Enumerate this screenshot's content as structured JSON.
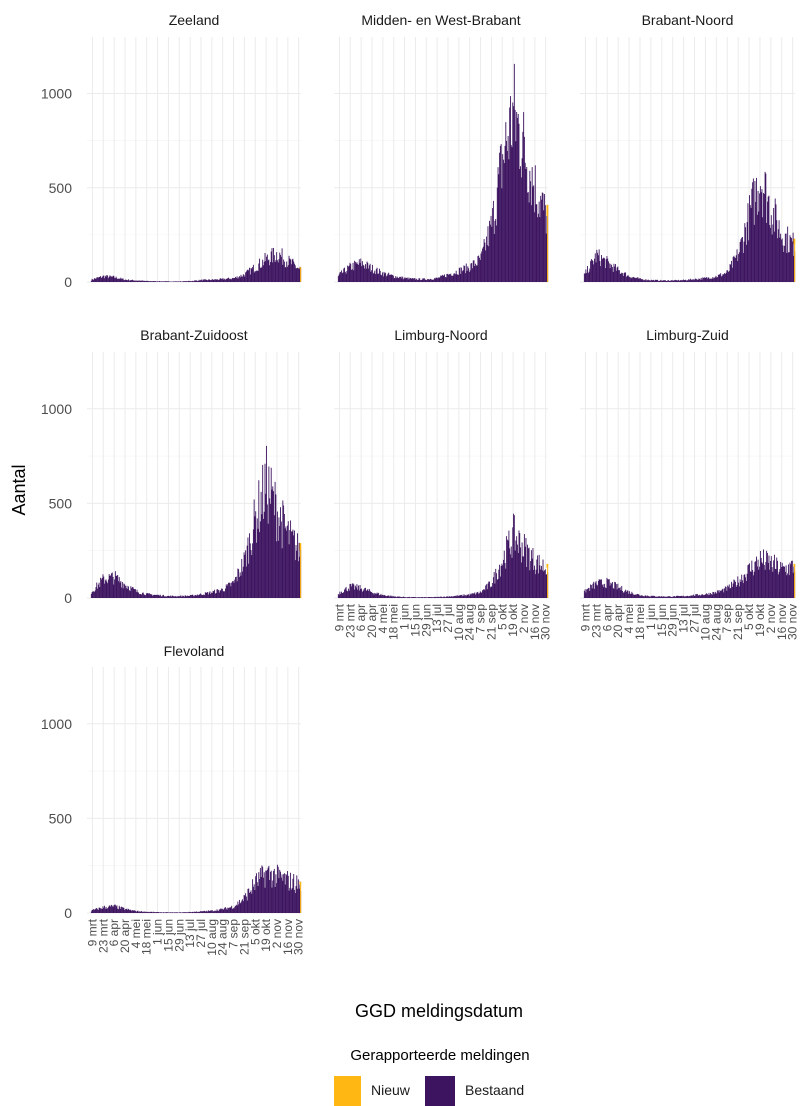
{
  "chart_data": {
    "type": "bar",
    "xlabel": "GGD meldingsdatum",
    "ylabel": "Aantal",
    "ylim": [
      0,
      1300
    ],
    "yticks": [
      0,
      500,
      1000
    ],
    "grid": true,
    "x_start": "2020-03-02",
    "x_end": "2020-12-03",
    "xticks": [
      "9 mrt",
      "23 mrt",
      "6 apr",
      "20 apr",
      "4 mei",
      "18 mei",
      "1 jun",
      "15 jun",
      "29 jun",
      "13 jul",
      "27 jul",
      "10 aug",
      "24 aug",
      "7 sep",
      "21 sep",
      "5 okt",
      "19 okt",
      "2 nov",
      "16 nov",
      "30 nov"
    ],
    "xtick_dates": [
      "2020-03-09",
      "2020-03-23",
      "2020-04-06",
      "2020-04-20",
      "2020-05-04",
      "2020-05-18",
      "2020-06-01",
      "2020-06-15",
      "2020-06-29",
      "2020-07-13",
      "2020-07-27",
      "2020-08-10",
      "2020-08-24",
      "2020-09-07",
      "2020-09-21",
      "2020-10-05",
      "2020-10-19",
      "2020-11-02",
      "2020-11-16",
      "2020-11-30"
    ],
    "legend": {
      "title": "Gerapporteerde meldingen",
      "position": "bottom",
      "entries": [
        {
          "name": "Nieuw",
          "color": "#ffb713"
        },
        {
          "name": "Bestaand",
          "color": "#3d1460"
        }
      ]
    },
    "panels": [
      {
        "name": "Zeeland",
        "series": {
          "date": [
            "2020-03-09",
            "2020-03-23",
            "2020-04-06",
            "2020-04-20",
            "2020-05-04",
            "2020-05-18",
            "2020-06-01",
            "2020-06-15",
            "2020-06-29",
            "2020-07-13",
            "2020-07-27",
            "2020-08-10",
            "2020-08-24",
            "2020-09-07",
            "2020-09-21",
            "2020-10-05",
            "2020-10-19",
            "2020-11-02",
            "2020-11-16",
            "2020-11-30"
          ],
          "Bestaand": [
            15,
            30,
            25,
            12,
            8,
            5,
            4,
            3,
            3,
            5,
            10,
            12,
            15,
            20,
            40,
            80,
            120,
            150,
            110,
            70
          ],
          "Nieuw": [
            0,
            0,
            0,
            0,
            0,
            0,
            0,
            0,
            0,
            0,
            0,
            0,
            0,
            0,
            0,
            0,
            0,
            0,
            0,
            8
          ]
        }
      },
      {
        "name": "Midden- en West-Brabant",
        "series": {
          "date": [
            "2020-03-09",
            "2020-03-23",
            "2020-04-06",
            "2020-04-20",
            "2020-05-04",
            "2020-05-18",
            "2020-06-01",
            "2020-06-15",
            "2020-06-29",
            "2020-07-13",
            "2020-07-27",
            "2020-08-10",
            "2020-08-24",
            "2020-09-07",
            "2020-09-21",
            "2020-10-05",
            "2020-10-19",
            "2020-11-02",
            "2020-11-16",
            "2020-11-30"
          ],
          "Bestaand": [
            40,
            80,
            100,
            70,
            45,
            30,
            20,
            15,
            15,
            20,
            40,
            60,
            80,
            120,
            300,
            650,
            900,
            700,
            500,
            350
          ],
          "Nieuw": [
            0,
            0,
            0,
            0,
            0,
            0,
            0,
            0,
            0,
            0,
            0,
            0,
            0,
            0,
            0,
            0,
            0,
            0,
            0,
            60
          ]
        }
      },
      {
        "name": "Brabant-Noord",
        "series": {
          "date": [
            "2020-03-09",
            "2020-03-23",
            "2020-04-06",
            "2020-04-20",
            "2020-05-04",
            "2020-05-18",
            "2020-06-01",
            "2020-06-15",
            "2020-06-29",
            "2020-07-13",
            "2020-07-27",
            "2020-08-10",
            "2020-08-24",
            "2020-09-07",
            "2020-09-21",
            "2020-10-05",
            "2020-10-19",
            "2020-11-02",
            "2020-11-16",
            "2020-11-30"
          ],
          "Bestaand": [
            50,
            140,
            100,
            60,
            30,
            15,
            10,
            8,
            8,
            10,
            15,
            20,
            30,
            50,
            150,
            350,
            560,
            380,
            250,
            200
          ],
          "Nieuw": [
            0,
            0,
            0,
            0,
            0,
            0,
            0,
            0,
            0,
            0,
            0,
            0,
            0,
            0,
            0,
            0,
            0,
            0,
            0,
            30
          ]
        }
      },
      {
        "name": "Brabant-Zuidoost",
        "series": {
          "date": [
            "2020-03-09",
            "2020-03-23",
            "2020-04-06",
            "2020-04-20",
            "2020-05-04",
            "2020-05-18",
            "2020-06-01",
            "2020-06-15",
            "2020-06-29",
            "2020-07-13",
            "2020-07-27",
            "2020-08-10",
            "2020-08-24",
            "2020-09-07",
            "2020-09-21",
            "2020-10-05",
            "2020-10-19",
            "2020-11-02",
            "2020-11-16",
            "2020-11-30"
          ],
          "Bestaand": [
            40,
            100,
            110,
            70,
            35,
            20,
            15,
            10,
            10,
            12,
            20,
            30,
            45,
            80,
            200,
            420,
            600,
            450,
            330,
            250
          ],
          "Nieuw": [
            0,
            0,
            0,
            0,
            0,
            0,
            0,
            0,
            0,
            0,
            0,
            0,
            0,
            0,
            0,
            0,
            0,
            0,
            0,
            40
          ]
        }
      },
      {
        "name": "Limburg-Noord",
        "series": {
          "date": [
            "2020-03-09",
            "2020-03-23",
            "2020-04-06",
            "2020-04-20",
            "2020-05-04",
            "2020-05-18",
            "2020-06-01",
            "2020-06-15",
            "2020-06-29",
            "2020-07-13",
            "2020-07-27",
            "2020-08-10",
            "2020-08-24",
            "2020-09-07",
            "2020-09-21",
            "2020-10-05",
            "2020-10-19",
            "2020-11-02",
            "2020-11-16",
            "2020-11-30"
          ],
          "Bestaand": [
            30,
            60,
            50,
            30,
            15,
            8,
            5,
            4,
            4,
            5,
            8,
            12,
            18,
            30,
            80,
            200,
            330,
            260,
            190,
            160
          ],
          "Nieuw": [
            0,
            0,
            0,
            0,
            0,
            0,
            0,
            0,
            0,
            0,
            0,
            0,
            0,
            0,
            0,
            0,
            0,
            0,
            0,
            20
          ]
        }
      },
      {
        "name": "Limburg-Zuid",
        "series": {
          "date": [
            "2020-03-09",
            "2020-03-23",
            "2020-04-06",
            "2020-04-20",
            "2020-05-04",
            "2020-05-18",
            "2020-06-01",
            "2020-06-15",
            "2020-06-29",
            "2020-07-13",
            "2020-07-27",
            "2020-08-10",
            "2020-08-24",
            "2020-09-07",
            "2020-09-21",
            "2020-10-05",
            "2020-10-19",
            "2020-11-02",
            "2020-11-16",
            "2020-11-30"
          ],
          "Bestaand": [
            40,
            75,
            80,
            55,
            30,
            15,
            10,
            8,
            8,
            10,
            15,
            20,
            30,
            50,
            90,
            150,
            200,
            180,
            150,
            165
          ],
          "Nieuw": [
            0,
            0,
            0,
            0,
            0,
            0,
            0,
            0,
            0,
            0,
            0,
            0,
            0,
            0,
            0,
            0,
            0,
            0,
            0,
            15
          ]
        }
      },
      {
        "name": "Flevoland",
        "series": {
          "date": [
            "2020-03-09",
            "2020-03-23",
            "2020-04-06",
            "2020-04-20",
            "2020-05-04",
            "2020-05-18",
            "2020-06-01",
            "2020-06-15",
            "2020-06-29",
            "2020-07-13",
            "2020-07-27",
            "2020-08-10",
            "2020-08-24",
            "2020-09-07",
            "2020-09-21",
            "2020-10-05",
            "2020-10-19",
            "2020-11-02",
            "2020-11-16",
            "2020-11-30"
          ],
          "Bestaand": [
            15,
            30,
            35,
            20,
            10,
            6,
            4,
            3,
            3,
            5,
            8,
            12,
            20,
            35,
            80,
            160,
            210,
            190,
            170,
            150
          ],
          "Nieuw": [
            0,
            0,
            0,
            0,
            0,
            0,
            0,
            0,
            0,
            0,
            0,
            0,
            0,
            0,
            0,
            0,
            0,
            0,
            0,
            15
          ]
        }
      }
    ]
  }
}
